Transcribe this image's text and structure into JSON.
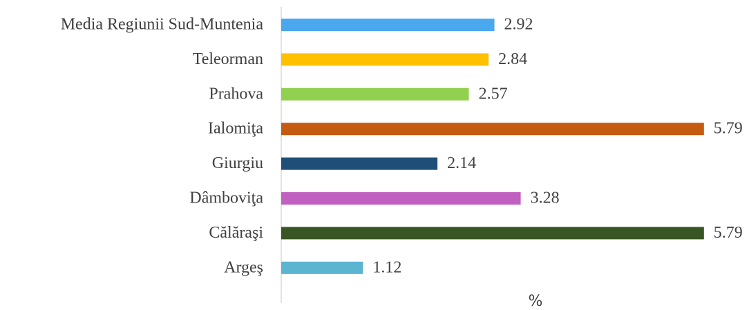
{
  "chart_data": {
    "type": "bar",
    "orientation": "horizontal",
    "categories": [
      "Media Regiunii Sud-Muntenia",
      "Teleorman",
      "Prahova",
      "Ialomiţa",
      "Giurgiu",
      "Dâmboviţa",
      "Călăraşi",
      "Argeş"
    ],
    "values": [
      2.92,
      2.84,
      2.57,
      5.79,
      2.14,
      3.28,
      5.79,
      1.12
    ],
    "colors": [
      "#4aa8ee",
      "#ffc000",
      "#92d050",
      "#c55a11",
      "#1f4e79",
      "#c060c0",
      "#375623",
      "#5bb4d0"
    ],
    "xlabel": "%",
    "xlim": [
      0,
      6
    ]
  }
}
